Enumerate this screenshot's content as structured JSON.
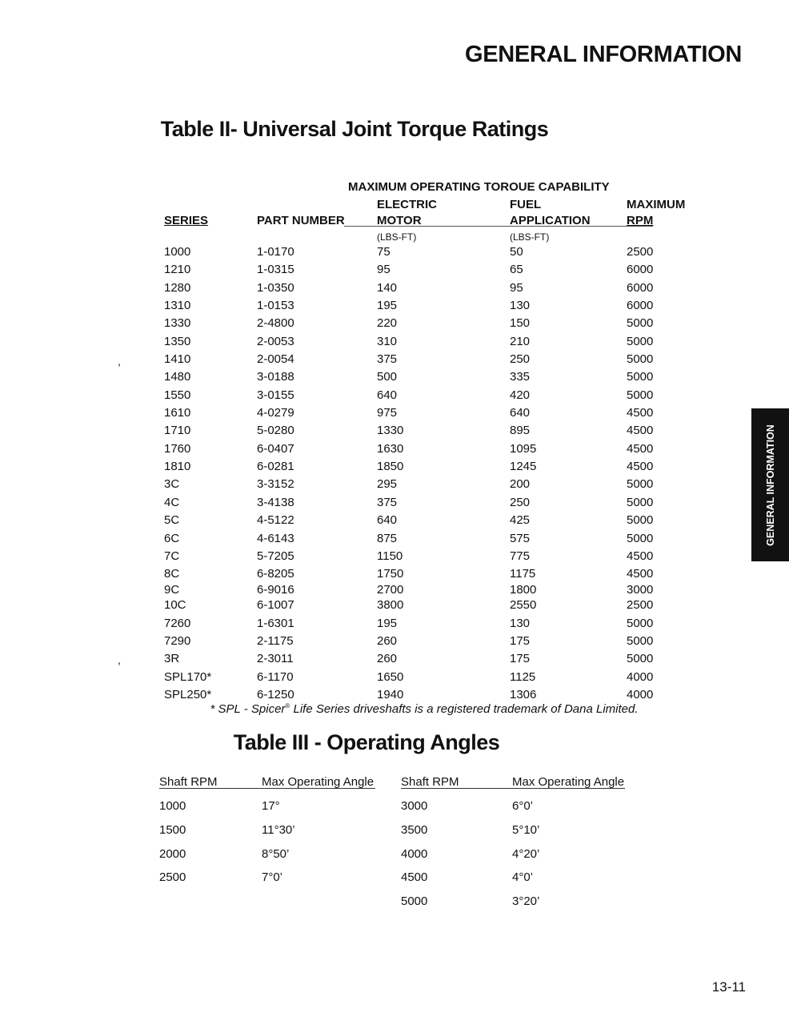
{
  "header": {
    "title": "GENERAL INFORMATION"
  },
  "side_tab": {
    "label": "GENERAL INFORMATION"
  },
  "table2": {
    "title": "Table II- Universal Joint Torque Ratings",
    "group_header": "MAXIMUM OPERATING TOROUE CAPABILITY",
    "columns": [
      {
        "line1": "",
        "line2": "SERIES",
        "unit": ""
      },
      {
        "line1": "",
        "line2": "PART NUMBER",
        "unit": ""
      },
      {
        "line1": "ELECTRIC",
        "line2": "MOTOR",
        "unit": "(LBS-FT)"
      },
      {
        "line1": "FUEL",
        "line2": "APPLICATION",
        "unit": "(LBS-FT)"
      },
      {
        "line1": "MAXIMUM",
        "line2": "RPM",
        "unit": ""
      }
    ],
    "rows": [
      [
        "1000",
        "1-0170",
        "75",
        "50",
        "2500"
      ],
      [
        "1210",
        "1-0315",
        "95",
        "65",
        "6000"
      ],
      [
        "1280",
        "1-0350",
        "140",
        "95",
        "6000"
      ],
      [
        "1310",
        "1-0153",
        "195",
        "130",
        "6000"
      ],
      [
        "1330",
        "2-4800",
        "220",
        "150",
        "5000"
      ],
      [
        "1350",
        "2-0053",
        "310",
        "210",
        "5000"
      ],
      [
        "1410",
        "2-0054",
        "375",
        "250",
        "5000"
      ],
      [
        "1480",
        "3-0188",
        "500",
        "335",
        "5000"
      ],
      [
        "1550",
        "3-0155",
        "640",
        "420",
        "5000"
      ],
      [
        "1610",
        "4-0279",
        "975",
        "640",
        "4500"
      ],
      [
        "1710",
        "5-0280",
        "1330",
        "895",
        "4500"
      ],
      [
        "1760",
        "6-0407",
        "1630",
        "1095",
        "4500"
      ],
      [
        "1810",
        "6-0281",
        "1850",
        "1245",
        "4500"
      ],
      [
        "3C",
        "3-3152",
        "295",
        "200",
        "5000"
      ],
      [
        "4C",
        "3-4138",
        "375",
        "250",
        "5000"
      ],
      [
        "5C",
        "4-5122",
        "640",
        "425",
        "5000"
      ],
      [
        "6C",
        "4-6143",
        "875",
        "575",
        "5000"
      ],
      [
        "7C",
        "5-7205",
        "1150",
        "775",
        "4500"
      ],
      [
        "8C",
        "6-8205",
        "1750",
        "1175",
        "4500"
      ],
      [
        "9C",
        "6-9016",
        "2700",
        "1800",
        "3000"
      ],
      [
        "10C",
        "6-1007",
        "3800",
        "2550",
        "2500"
      ],
      [
        "7260",
        "1-6301",
        "195",
        "130",
        "5000"
      ],
      [
        "7290",
        "2-1175",
        "260",
        "175",
        "5000"
      ],
      [
        "3R",
        "2-3011",
        "260",
        "175",
        "5000"
      ],
      [
        "SPL170*",
        "6-1170",
        "1650",
        "1125",
        "4000"
      ],
      [
        "SPL250*",
        "6-1250",
        "1940",
        "1306",
        "4000"
      ]
    ],
    "stray_marks": [
      ",",
      ","
    ],
    "footnote_pre": "* SPL - Spicer",
    "footnote_reg": "®",
    "footnote_post": " Life Series driveshafts is a registered trademark of Dana Limited."
  },
  "table3": {
    "title": "Table III - Operating Angles",
    "headers": [
      "Shaft RPM",
      "Max Operating Angle",
      "Shaft RPM",
      "Max Operating Angle"
    ],
    "rows": [
      [
        "1000",
        "17°",
        "3000",
        "6°0’"
      ],
      [
        "1500",
        "11°30’",
        "3500",
        "5°10’"
      ],
      [
        "2000",
        "8°50’",
        "4000",
        "4°20’"
      ],
      [
        "2500",
        "7°0’",
        "4500",
        "4°0’"
      ],
      [
        "",
        "",
        "5000",
        "3°20’"
      ]
    ]
  },
  "page_number": "13-11"
}
